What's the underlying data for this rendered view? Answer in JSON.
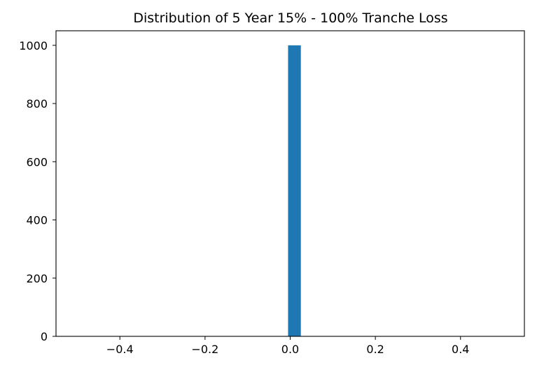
{
  "chart_data": {
    "type": "bar",
    "title": "Distribution of 5 Year 15% - 100% Tranche Loss",
    "xlabel": "",
    "ylabel": "",
    "xlim": [
      -0.55,
      0.55
    ],
    "ylim": [
      0,
      1050
    ],
    "bins": [
      {
        "x_start": -0.005,
        "x_end": 0.025,
        "count": 1000
      }
    ],
    "x_ticks": [
      {
        "value": -0.4,
        "label": "−0.4"
      },
      {
        "value": -0.2,
        "label": "−0.2"
      },
      {
        "value": 0.0,
        "label": "0.0"
      },
      {
        "value": 0.2,
        "label": "0.2"
      },
      {
        "value": 0.4,
        "label": "0.4"
      }
    ],
    "y_ticks": [
      {
        "value": 0,
        "label": "0"
      },
      {
        "value": 200,
        "label": "200"
      },
      {
        "value": 400,
        "label": "400"
      },
      {
        "value": 600,
        "label": "600"
      },
      {
        "value": 800,
        "label": "800"
      },
      {
        "value": 1000,
        "label": "1000"
      }
    ],
    "grid": false,
    "legend": "none",
    "bar_color": "#1f77b4"
  }
}
